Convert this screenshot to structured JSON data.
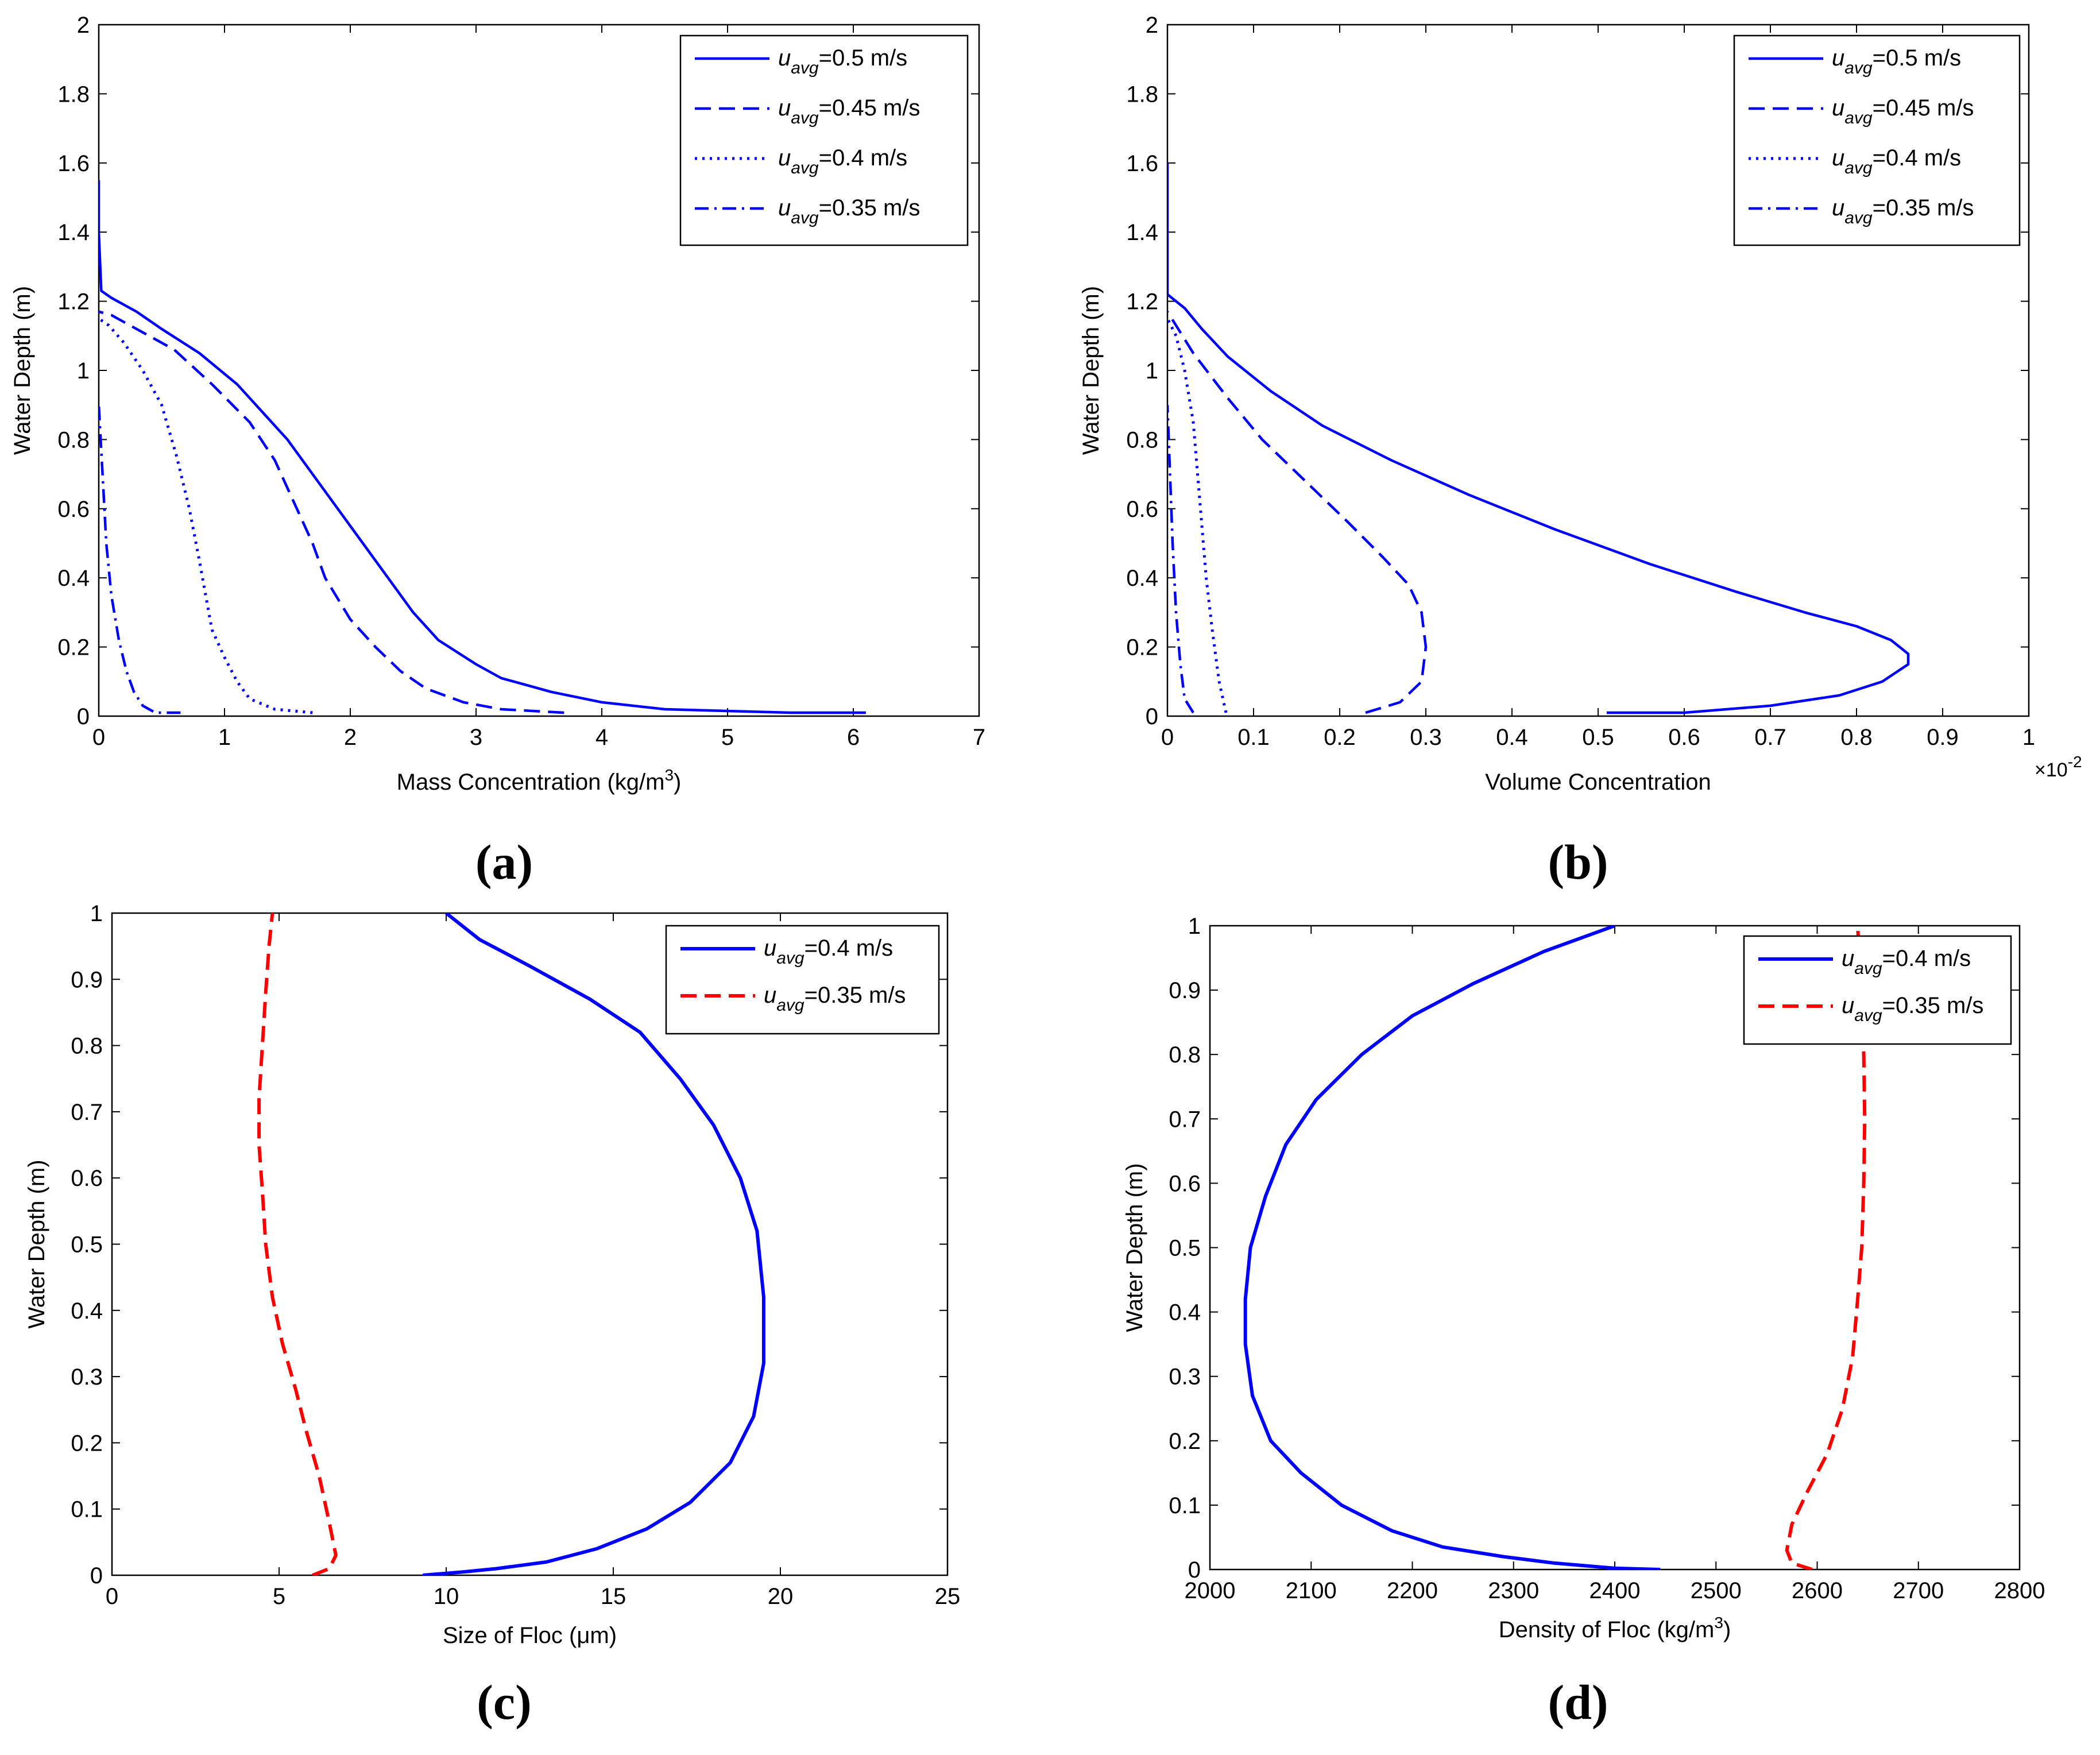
{
  "chart_data": [
    {
      "panel": "(a)",
      "type": "line",
      "xlabel": "Mass Concentration (kg/m",
      "xlabel_sup": "3",
      "xlabel_tail": ")",
      "ylabel": "Water Depth (m)",
      "xlim": [
        0,
        7
      ],
      "ylim": [
        0,
        2
      ],
      "xticks": [
        0,
        1,
        2,
        3,
        4,
        5,
        6,
        7
      ],
      "yticks": [
        0,
        0.2,
        0.4,
        0.6,
        0.8,
        1,
        1.2,
        1.4,
        1.6,
        1.8,
        2
      ],
      "legend_position": "top-right",
      "series": [
        {
          "name_base": "u",
          "name_sub": "avg",
          "name_tail": "=0.5 m/s",
          "style": "solid",
          "color": "#0000ff",
          "x": [
            6.1,
            5.5,
            4.5,
            4.0,
            3.6,
            3.2,
            3.0,
            2.7,
            2.5,
            2.3,
            2.1,
            1.9,
            1.7,
            1.5,
            1.3,
            1.1,
            0.8,
            0.5,
            0.3,
            0.1,
            0.02,
            0.0,
            0.0
          ],
          "y": [
            0.01,
            0.01,
            0.02,
            0.04,
            0.07,
            0.11,
            0.15,
            0.22,
            0.3,
            0.4,
            0.5,
            0.6,
            0.7,
            0.8,
            0.88,
            0.96,
            1.05,
            1.12,
            1.17,
            1.21,
            1.23,
            1.4,
            1.55
          ]
        },
        {
          "name_base": "u",
          "name_sub": "avg",
          "name_tail": "=0.45 m/s",
          "style": "dashed",
          "color": "#0000ff",
          "x": [
            3.7,
            3.2,
            2.9,
            2.6,
            2.4,
            2.2,
            2.0,
            1.8,
            1.7,
            1.6,
            1.5,
            1.4,
            1.2,
            0.9,
            0.6,
            0.3,
            0.1,
            0.0
          ],
          "y": [
            0.01,
            0.02,
            0.04,
            0.08,
            0.13,
            0.2,
            0.28,
            0.4,
            0.5,
            0.58,
            0.66,
            0.74,
            0.85,
            0.96,
            1.06,
            1.12,
            1.16,
            1.17
          ]
        },
        {
          "name_base": "u",
          "name_sub": "avg",
          "name_tail": "=0.4 m/s",
          "style": "dotted",
          "color": "#0000ff",
          "x": [
            1.7,
            1.4,
            1.2,
            1.1,
            1.0,
            0.9,
            0.85,
            0.8,
            0.72,
            0.62,
            0.5,
            0.35,
            0.2,
            0.08,
            0.0
          ],
          "y": [
            0.01,
            0.02,
            0.05,
            0.1,
            0.17,
            0.25,
            0.35,
            0.45,
            0.6,
            0.75,
            0.9,
            1.0,
            1.08,
            1.13,
            1.15
          ]
        },
        {
          "name_base": "u",
          "name_sub": "avg",
          "name_tail": "=0.35 m/s",
          "style": "dashdot",
          "color": "#0000ff",
          "x": [
            0.65,
            0.45,
            0.35,
            0.28,
            0.22,
            0.16,
            0.1,
            0.06,
            0.03,
            0.0
          ],
          "y": [
            0.01,
            0.01,
            0.03,
            0.07,
            0.13,
            0.22,
            0.35,
            0.5,
            0.7,
            0.9
          ]
        }
      ]
    },
    {
      "panel": "(b)",
      "type": "line",
      "xlabel": "Volume Concentration",
      "ylabel": "Water Depth (m)",
      "x_exponent_base": "×10",
      "x_exponent": "-2",
      "xlim": [
        0,
        1
      ],
      "ylim": [
        0,
        2
      ],
      "xticks": [
        0,
        0.1,
        0.2,
        0.3,
        0.4,
        0.5,
        0.6,
        0.7,
        0.8,
        0.9,
        1
      ],
      "yticks": [
        0,
        0.2,
        0.4,
        0.6,
        0.8,
        1,
        1.2,
        1.4,
        1.6,
        1.8,
        2
      ],
      "legend_position": "top-right",
      "series": [
        {
          "name_base": "u",
          "name_sub": "avg",
          "name_tail": "=0.5 m/s",
          "style": "solid",
          "color": "#0000ff",
          "x": [
            0.51,
            0.6,
            0.7,
            0.78,
            0.83,
            0.86,
            0.86,
            0.84,
            0.8,
            0.74,
            0.66,
            0.56,
            0.45,
            0.35,
            0.26,
            0.18,
            0.12,
            0.07,
            0.04,
            0.02,
            0.0,
            0.0
          ],
          "y": [
            0.01,
            0.01,
            0.03,
            0.06,
            0.1,
            0.15,
            0.18,
            0.22,
            0.26,
            0.3,
            0.36,
            0.44,
            0.54,
            0.64,
            0.74,
            0.84,
            0.94,
            1.04,
            1.12,
            1.18,
            1.22,
            1.6
          ]
        },
        {
          "name_base": "u",
          "name_sub": "avg",
          "name_tail": "=0.45 m/s",
          "style": "dashed",
          "color": "#0000ff",
          "x": [
            0.23,
            0.27,
            0.295,
            0.3,
            0.295,
            0.28,
            0.25,
            0.21,
            0.16,
            0.11,
            0.07,
            0.03,
            0.01,
            0.0
          ],
          "y": [
            0.01,
            0.04,
            0.1,
            0.2,
            0.3,
            0.38,
            0.46,
            0.56,
            0.68,
            0.8,
            0.92,
            1.05,
            1.13,
            1.17
          ]
        },
        {
          "name_base": "u",
          "name_sub": "avg",
          "name_tail": "=0.4 m/s",
          "style": "dotted",
          "color": "#0000ff",
          "x": [
            0.068,
            0.06,
            0.052,
            0.045,
            0.04,
            0.035,
            0.03,
            0.02,
            0.01,
            0.0
          ],
          "y": [
            0.01,
            0.1,
            0.25,
            0.4,
            0.55,
            0.7,
            0.85,
            1.0,
            1.1,
            1.15
          ]
        },
        {
          "name_base": "u",
          "name_sub": "avg",
          "name_tail": "=0.35 m/s",
          "style": "dashdot",
          "color": "#0000ff",
          "x": [
            0.03,
            0.02,
            0.015,
            0.01,
            0.006,
            0.003,
            0.0
          ],
          "y": [
            0.01,
            0.05,
            0.15,
            0.3,
            0.5,
            0.7,
            0.9
          ]
        }
      ]
    },
    {
      "panel": "(c)",
      "type": "line",
      "xlabel": "Size of Floc (",
      "xlabel_mu": "μ",
      "xlabel_tail": "m)",
      "ylabel": "Water Depth (m)",
      "xlim": [
        0,
        25
      ],
      "ylim": [
        0,
        1
      ],
      "xticks": [
        0,
        5,
        10,
        15,
        20,
        25
      ],
      "yticks": [
        0,
        0.1,
        0.2,
        0.3,
        0.4,
        0.5,
        0.6,
        0.7,
        0.8,
        0.9,
        1
      ],
      "legend_position": "top-right",
      "series": [
        {
          "name_base": "u",
          "name_sub": "avg",
          "name_tail": "=0.4 m/s",
          "style": "solid",
          "color": "#0000ff",
          "x": [
            9.3,
            10.5,
            11.5,
            13.0,
            14.5,
            16.0,
            17.3,
            18.5,
            19.2,
            19.5,
            19.5,
            19.3,
            18.8,
            18.0,
            17.0,
            15.8,
            14.3,
            12.5,
            11.0,
            10.0
          ],
          "y": [
            0.0,
            0.005,
            0.01,
            0.02,
            0.04,
            0.07,
            0.11,
            0.17,
            0.24,
            0.32,
            0.42,
            0.52,
            0.6,
            0.68,
            0.75,
            0.82,
            0.87,
            0.92,
            0.96,
            1.0
          ]
        },
        {
          "name_base": "u",
          "name_sub": "avg",
          "name_tail": "=0.35 m/s",
          "style": "dashed",
          "color": "#ff0000",
          "x": [
            6.0,
            6.5,
            6.7,
            6.5,
            6.2,
            5.8,
            5.5,
            5.1,
            4.8,
            4.6,
            4.5,
            4.4,
            4.4,
            4.5,
            4.6,
            4.7,
            4.8
          ],
          "y": [
            0.0,
            0.01,
            0.03,
            0.08,
            0.15,
            0.22,
            0.28,
            0.35,
            0.42,
            0.5,
            0.58,
            0.65,
            0.72,
            0.8,
            0.88,
            0.95,
            1.0
          ]
        }
      ]
    },
    {
      "panel": "(d)",
      "type": "line",
      "xlabel": "Density of Floc (kg/m",
      "xlabel_sup": "3",
      "xlabel_tail": ")",
      "ylabel": "Water Depth (m)",
      "xlim": [
        2000,
        2800
      ],
      "ylim": [
        0,
        1
      ],
      "xticks": [
        2000,
        2100,
        2200,
        2300,
        2400,
        2500,
        2600,
        2700,
        2800
      ],
      "yticks": [
        0,
        0.1,
        0.2,
        0.3,
        0.4,
        0.5,
        0.6,
        0.7,
        0.8,
        0.9,
        1
      ],
      "legend_position": "top-right",
      "series": [
        {
          "name_base": "u",
          "name_sub": "avg",
          "name_tail": "=0.4 m/s",
          "style": "solid",
          "color": "#0000ff",
          "x": [
            2445,
            2400,
            2340,
            2290,
            2230,
            2180,
            2130,
            2090,
            2060,
            2042,
            2035,
            2035,
            2040,
            2055,
            2075,
            2105,
            2150,
            2200,
            2260,
            2330,
            2400
          ],
          "y": [
            0.0,
            0.002,
            0.01,
            0.02,
            0.035,
            0.06,
            0.1,
            0.15,
            0.2,
            0.27,
            0.35,
            0.42,
            0.5,
            0.58,
            0.66,
            0.73,
            0.8,
            0.86,
            0.91,
            0.96,
            1.0
          ]
        },
        {
          "name_base": "u",
          "name_sub": "avg",
          "name_tail": "=0.35 m/s",
          "style": "dashed",
          "color": "#ff0000",
          "x": [
            2595,
            2575,
            2570,
            2575,
            2590,
            2610,
            2625,
            2635,
            2640,
            2644,
            2646,
            2647,
            2646,
            2644,
            2642,
            2640
          ],
          "y": [
            0.0,
            0.01,
            0.03,
            0.07,
            0.12,
            0.18,
            0.25,
            0.33,
            0.42,
            0.5,
            0.6,
            0.7,
            0.8,
            0.88,
            0.94,
            1.0
          ]
        }
      ]
    }
  ]
}
